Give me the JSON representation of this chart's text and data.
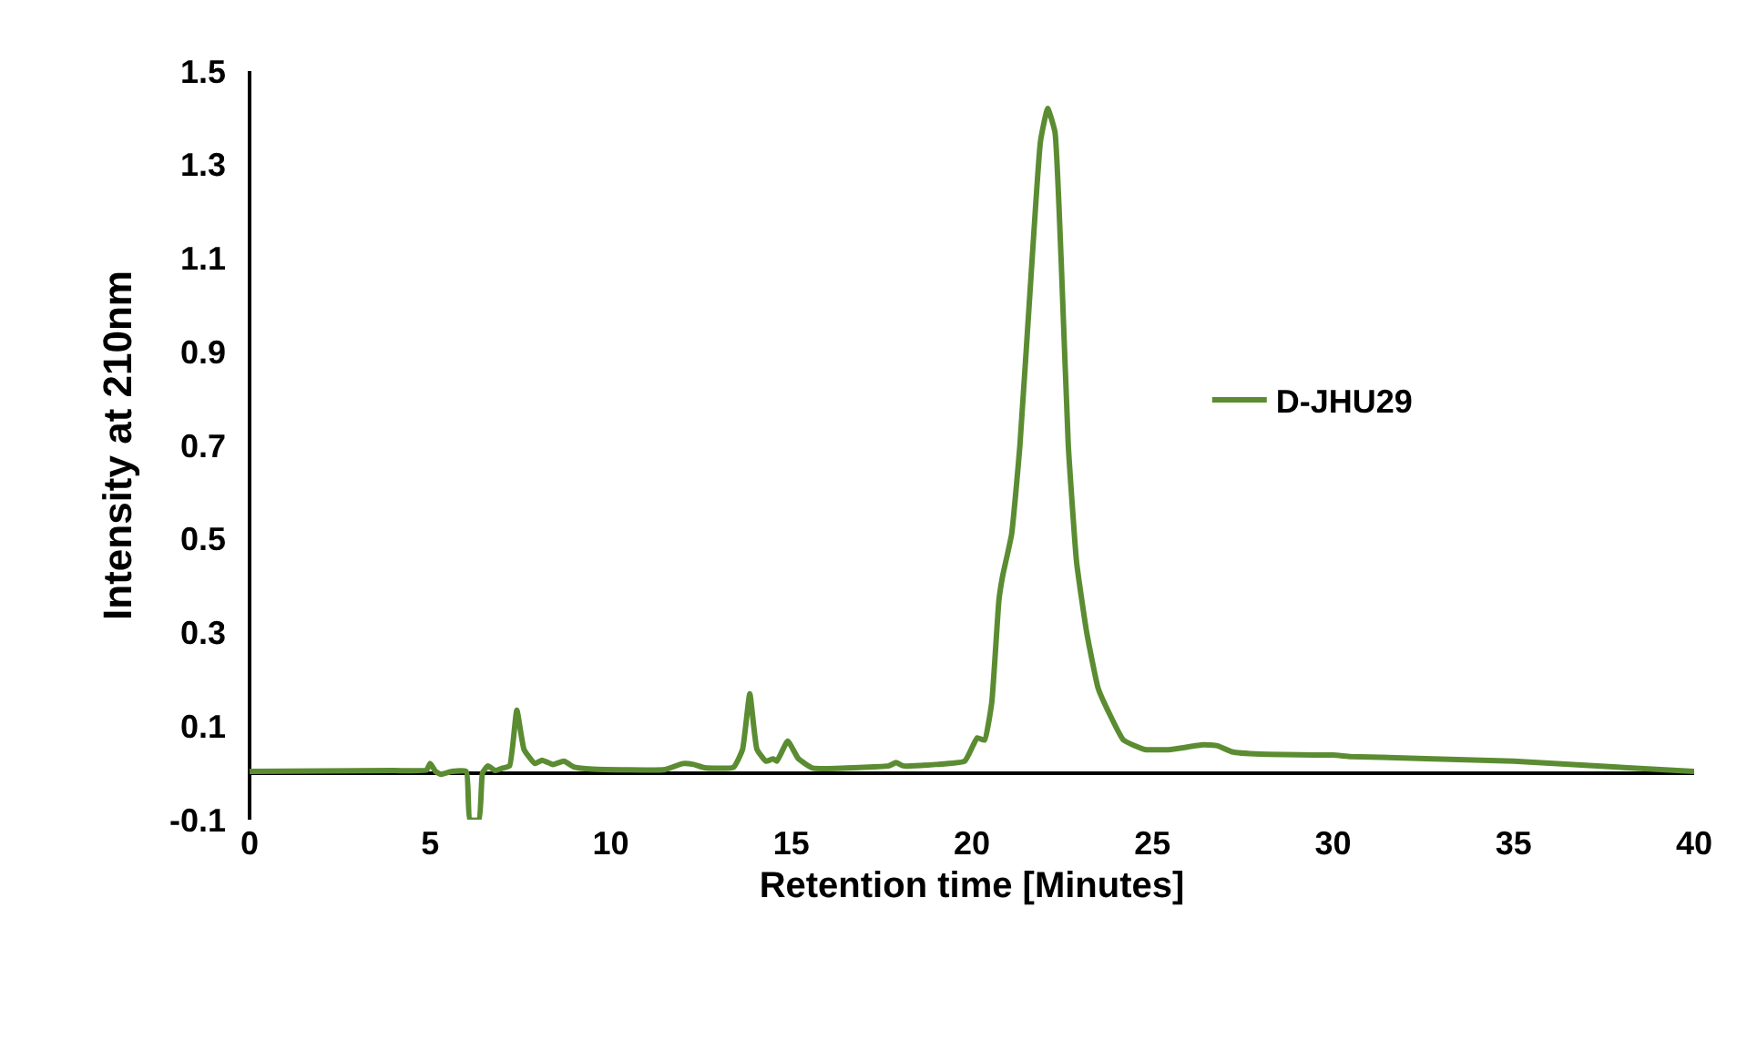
{
  "chart_data": {
    "type": "line",
    "xlabel": "Retention time [Minutes]",
    "ylabel": "Intensity at 210nm",
    "xlim": [
      0,
      40
    ],
    "xticks": [
      0,
      5,
      10,
      15,
      20,
      25,
      30,
      35,
      40
    ],
    "ylim": [
      -0.1,
      1.5
    ],
    "yticks": [
      -0.1,
      0.1,
      0.3,
      0.5,
      0.7,
      0.9,
      1.1,
      1.3,
      1.5
    ],
    "grid": false,
    "legend": "right",
    "marker": "none",
    "line_style": "solid",
    "series": [
      {
        "name": "D-JHU29",
        "color": "#5b8c32",
        "x": [
          0,
          4,
          4.9,
          5.0,
          5.15,
          5.3,
          5.6,
          6.0,
          6.1,
          6.35,
          6.45,
          6.6,
          6.8,
          7.0,
          7.2,
          7.4,
          7.6,
          7.9,
          8.1,
          8.4,
          8.7,
          9.0,
          9.5,
          11.5,
          12.0,
          12.3,
          12.6,
          13.4,
          13.65,
          13.85,
          14.05,
          14.3,
          14.5,
          14.6,
          14.9,
          15.2,
          15.6,
          17,
          17.7,
          17.9,
          18.1,
          19,
          19.8,
          20.15,
          20.35,
          20.55,
          20.75,
          20.85,
          21.1,
          21.33,
          21.67,
          21.9,
          22.1,
          22.3,
          22.47,
          22.67,
          22.9,
          23.18,
          23.5,
          23.85,
          24.2,
          24.8,
          25.5,
          26.4,
          26.8,
          27.2,
          28,
          30,
          30.5,
          35,
          40
        ],
        "values": [
          0.003,
          0.005,
          0.006,
          0.02,
          0.003,
          -0.003,
          0.003,
          0.003,
          -0.1,
          -0.1,
          0.0,
          0.015,
          0.005,
          0.01,
          0.015,
          0.134,
          0.05,
          0.02,
          0.027,
          0.018,
          0.025,
          0.012,
          0.008,
          0.007,
          0.02,
          0.018,
          0.011,
          0.012,
          0.05,
          0.169,
          0.05,
          0.025,
          0.03,
          0.025,
          0.068,
          0.03,
          0.01,
          0.012,
          0.015,
          0.022,
          0.015,
          0.018,
          0.025,
          0.075,
          0.07,
          0.15,
          0.37,
          0.42,
          0.51,
          0.7,
          1.1,
          1.35,
          1.42,
          1.37,
          1.1,
          0.7,
          0.45,
          0.3,
          0.18,
          0.12,
          0.07,
          0.05,
          0.05,
          0.06,
          0.058,
          0.045,
          0.04,
          0.038,
          0.035,
          0.025,
          0.003
        ]
      }
    ]
  }
}
